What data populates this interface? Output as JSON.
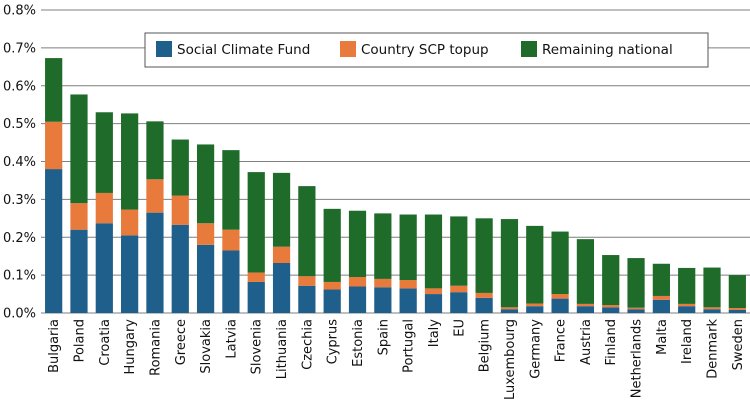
{
  "chart_data": {
    "type": "bar",
    "stacked": true,
    "categories": [
      "Bulgaria",
      "Poland",
      "Croatia",
      "Hungary",
      "Romania",
      "Greece",
      "Slovakia",
      "Latvia",
      "Slovenia",
      "Lithuania",
      "Czechia",
      "Cyprus",
      "Estonia",
      "Spain",
      "Portugal",
      "Italy",
      "EU",
      "Belgium",
      "Luxembourg",
      "Germany",
      "France",
      "Austria",
      "Finland",
      "Netherlands",
      "Malta",
      "Ireland",
      "Denmark",
      "Sweden"
    ],
    "series": [
      {
        "name": "Social Climate Fund",
        "color": "#1f5f8b",
        "values": [
          0.38,
          0.22,
          0.237,
          0.205,
          0.265,
          0.233,
          0.18,
          0.165,
          0.082,
          0.132,
          0.072,
          0.062,
          0.07,
          0.068,
          0.065,
          0.05,
          0.055,
          0.04,
          0.01,
          0.018,
          0.038,
          0.018,
          0.015,
          0.01,
          0.035,
          0.018,
          0.01,
          0.008
        ]
      },
      {
        "name": "Country SCP topup",
        "color": "#e87b3c",
        "values": [
          0.125,
          0.07,
          0.08,
          0.068,
          0.088,
          0.077,
          0.057,
          0.055,
          0.025,
          0.043,
          0.025,
          0.02,
          0.025,
          0.022,
          0.022,
          0.015,
          0.017,
          0.013,
          0.005,
          0.007,
          0.012,
          0.006,
          0.006,
          0.004,
          0.01,
          0.006,
          0.005,
          0.005
        ]
      },
      {
        "name": "Remaining national",
        "color": "#1e6b2a",
        "values": [
          0.168,
          0.287,
          0.213,
          0.254,
          0.153,
          0.148,
          0.208,
          0.21,
          0.265,
          0.195,
          0.238,
          0.193,
          0.175,
          0.173,
          0.173,
          0.195,
          0.183,
          0.197,
          0.233,
          0.205,
          0.165,
          0.171,
          0.132,
          0.131,
          0.085,
          0.095,
          0.105,
          0.087
        ]
      }
    ],
    "yticks": [
      "0.0%",
      "0.1%",
      "0.2%",
      "0.3%",
      "0.4%",
      "0.5%",
      "0.6%",
      "0.7%",
      "0.8%"
    ],
    "ylim": [
      0,
      0.8
    ],
    "grid": true,
    "legend_position": "top-right",
    "title": "",
    "xlabel": "",
    "ylabel": "",
    "gridline_color": "#7f7f7f"
  }
}
